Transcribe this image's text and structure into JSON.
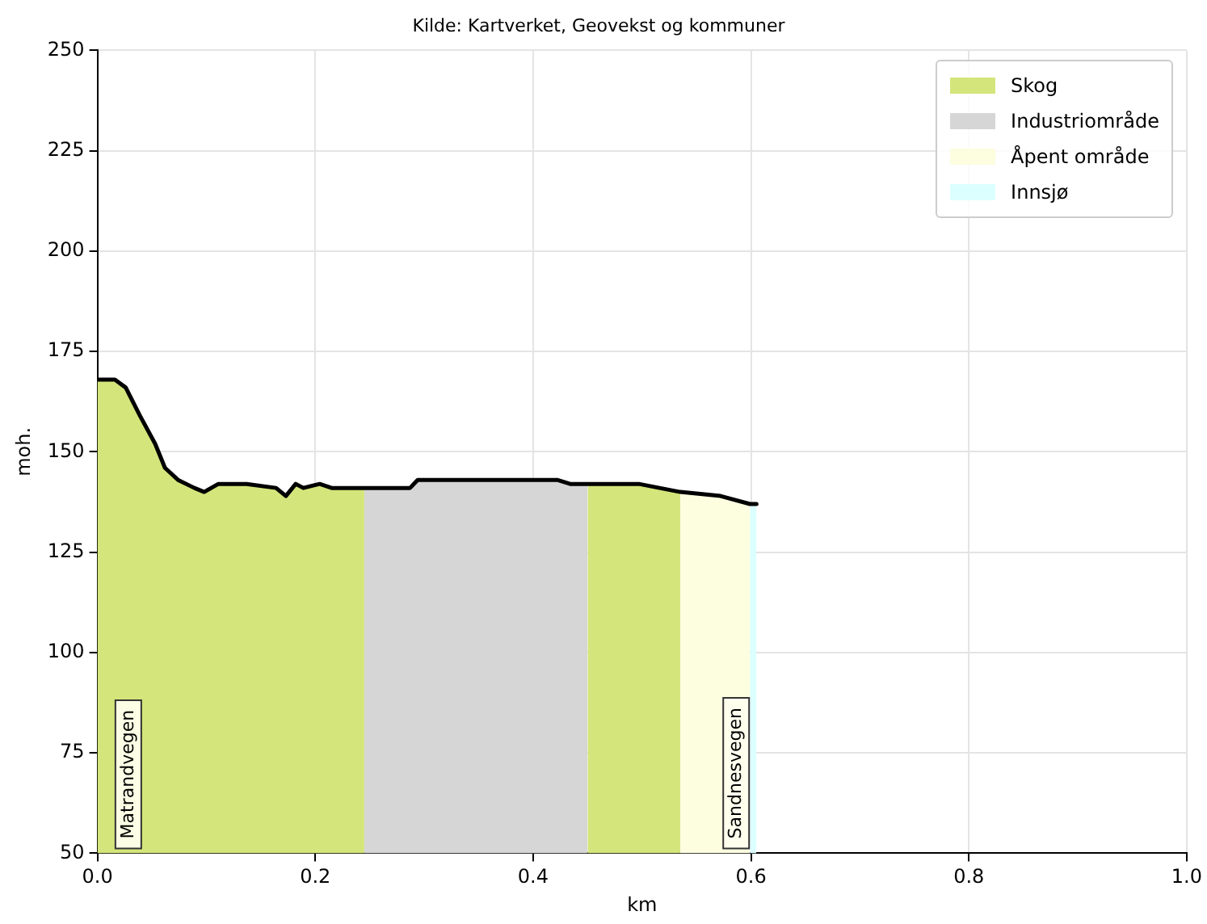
{
  "chart_data": {
    "type": "area",
    "title": "Kilde: Kartverket, Geovekst og kommuner",
    "xlabel": "km",
    "ylabel": "moh.",
    "xlim": [
      0,
      1
    ],
    "xticks": [
      {
        "value": 0,
        "label": "0.0"
      },
      {
        "value": 0.2,
        "label": "0.2"
      },
      {
        "value": 0.4,
        "label": "0.4"
      },
      {
        "value": 0.6,
        "label": "0.6"
      },
      {
        "value": 0.8,
        "label": "0.8"
      },
      {
        "value": 1,
        "label": "1.0"
      }
    ],
    "ylim": [
      50,
      250
    ],
    "yticks": [
      50,
      75,
      100,
      125,
      150,
      175,
      200,
      225,
      250
    ],
    "grid": true,
    "legend": "top right",
    "series": [
      {
        "name": "Skog",
        "color": "#d4e57b",
        "x": [
          0,
          0.016,
          0.026,
          0.039,
          0.053,
          0.062,
          0.074,
          0.089,
          0.098,
          0.111,
          0.137,
          0.164,
          0.173,
          0.182,
          0.189,
          0.204,
          0.215,
          0.245,
          0.35,
          0.45,
          0.482,
          0.497,
          0.535
        ],
        "values": [
          168,
          168,
          166,
          159,
          152,
          146,
          143,
          141,
          140,
          142,
          142,
          141,
          139,
          142,
          141,
          142,
          141,
          141,
          null,
          142,
          142,
          142,
          140
        ]
      },
      {
        "name": "Industriområde",
        "color": "#d6d6d6",
        "x": [
          0.245,
          0.287,
          0.294,
          0.317,
          0.399,
          0.422,
          0.434,
          0.45
        ],
        "values": [
          141,
          141,
          143,
          143,
          143,
          143,
          142,
          142
        ]
      },
      {
        "name": "Åpent område",
        "color": "#fdfde0",
        "x": [
          0.535,
          0.572,
          0.599
        ],
        "values": [
          140,
          139,
          137
        ]
      },
      {
        "name": "Innsjø",
        "color": "#dcffff",
        "x": [
          0.599,
          0.605
        ],
        "values": [
          137,
          137
        ]
      },
      {
        "color": "#000000",
        "type": "line",
        "x": [
          0,
          0.016,
          0.026,
          0.039,
          0.053,
          0.062,
          0.074,
          0.089,
          0.098,
          0.111,
          0.137,
          0.164,
          0.173,
          0.182,
          0.189,
          0.204,
          0.215,
          0.245,
          0.287,
          0.294,
          0.317,
          0.399,
          0.422,
          0.434,
          0.45,
          0.482,
          0.497,
          0.535,
          0.572,
          0.599,
          0.605
        ],
        "values": [
          168,
          168,
          166,
          159,
          152,
          146,
          143,
          141,
          140,
          142,
          142,
          141,
          139,
          142,
          141,
          142,
          141,
          141,
          141,
          143,
          143,
          143,
          143,
          142,
          142,
          142,
          142,
          140,
          139,
          137,
          137
        ]
      }
    ],
    "annotations": [
      "Matrandvegen",
      "Sandnesvegen"
    ]
  }
}
